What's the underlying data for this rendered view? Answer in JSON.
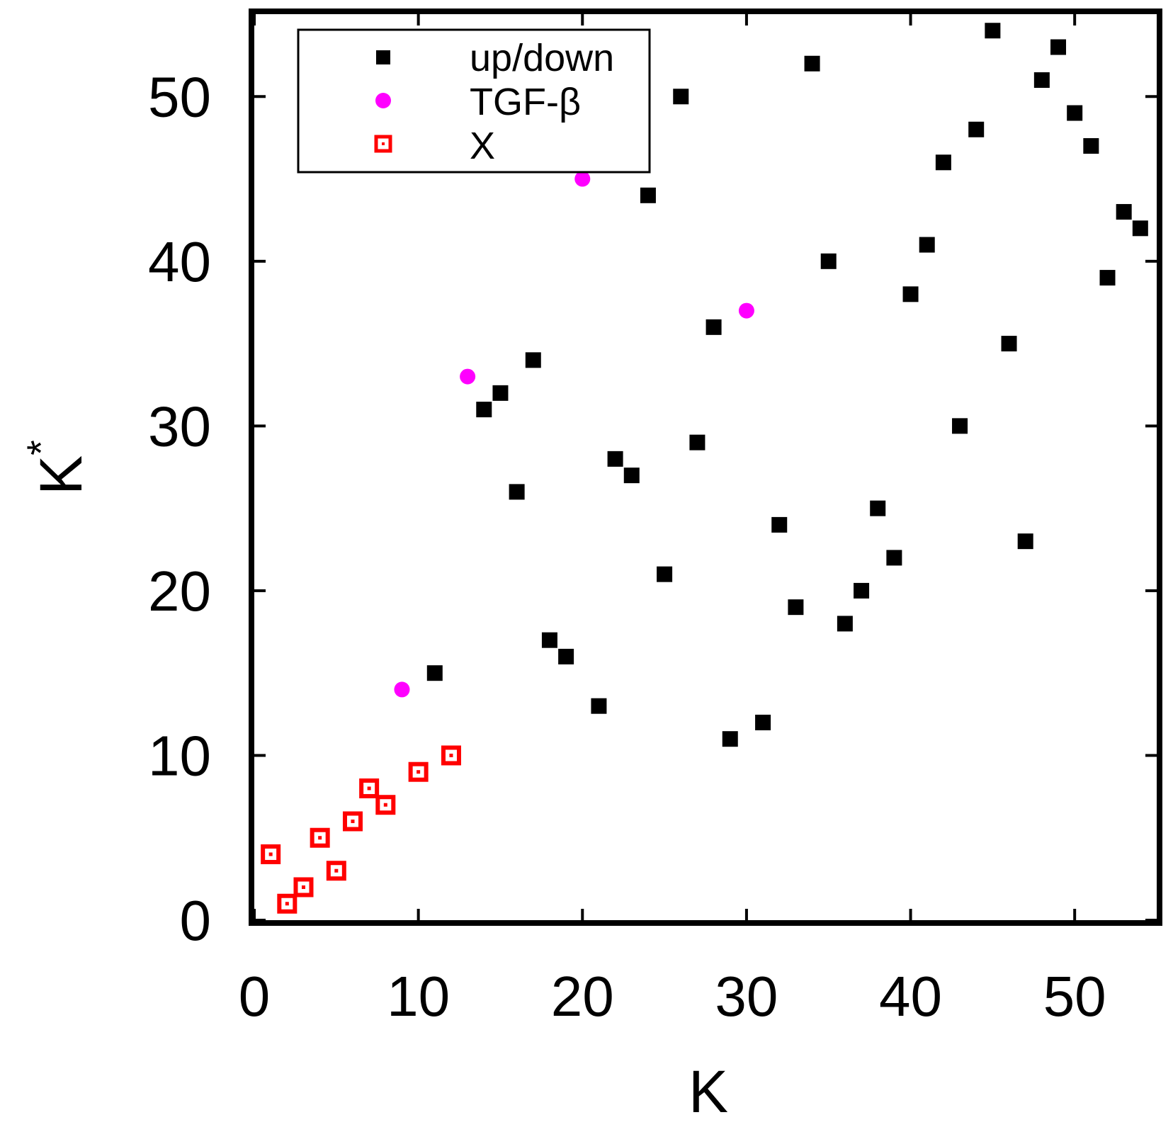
{
  "chart_data": {
    "type": "scatter",
    "xlabel": "K",
    "ylabel": "K",
    "ylabel_superscript": "*",
    "xlim": [
      0,
      55
    ],
    "ylim": [
      0,
      55
    ],
    "xticks": [
      0,
      10,
      20,
      30,
      40,
      50
    ],
    "yticks": [
      0,
      10,
      20,
      30,
      40,
      50
    ],
    "grid": false,
    "legend_position": "top-left",
    "series": [
      {
        "name": "up/down",
        "marker": "filled-square",
        "color": "#000000",
        "points": [
          [
            11,
            15
          ],
          [
            14,
            31
          ],
          [
            15,
            32
          ],
          [
            16,
            26
          ],
          [
            17,
            34
          ],
          [
            18,
            17
          ],
          [
            19,
            16
          ],
          [
            21,
            13
          ],
          [
            22,
            28
          ],
          [
            23,
            27
          ],
          [
            24,
            44
          ],
          [
            25,
            21
          ],
          [
            26,
            50
          ],
          [
            27,
            29
          ],
          [
            28,
            36
          ],
          [
            29,
            11
          ],
          [
            31,
            12
          ],
          [
            32,
            24
          ],
          [
            33,
            19
          ],
          [
            34,
            52
          ],
          [
            35,
            40
          ],
          [
            36,
            18
          ],
          [
            37,
            20
          ],
          [
            38,
            25
          ],
          [
            39,
            22
          ],
          [
            40,
            38
          ],
          [
            41,
            41
          ],
          [
            42,
            46
          ],
          [
            43,
            30
          ],
          [
            44,
            48
          ],
          [
            45,
            54
          ],
          [
            46,
            35
          ],
          [
            47,
            23
          ],
          [
            48,
            51
          ],
          [
            49,
            53
          ],
          [
            50,
            49
          ],
          [
            51,
            47
          ],
          [
            52,
            39
          ],
          [
            53,
            43
          ],
          [
            54,
            42
          ]
        ]
      },
      {
        "name": "TGF-β",
        "marker": "filled-circle",
        "color": "#ff00ff",
        "points": [
          [
            9,
            14
          ],
          [
            13,
            33
          ],
          [
            20,
            45
          ],
          [
            30,
            37
          ]
        ]
      },
      {
        "name": "X",
        "marker": "dotted-square",
        "color": "#ff0000",
        "points": [
          [
            1,
            4
          ],
          [
            2,
            1
          ],
          [
            3,
            2
          ],
          [
            4,
            5
          ],
          [
            5,
            3
          ],
          [
            6,
            6
          ],
          [
            7,
            8
          ],
          [
            8,
            7
          ],
          [
            10,
            9
          ],
          [
            12,
            10
          ]
        ]
      }
    ]
  }
}
